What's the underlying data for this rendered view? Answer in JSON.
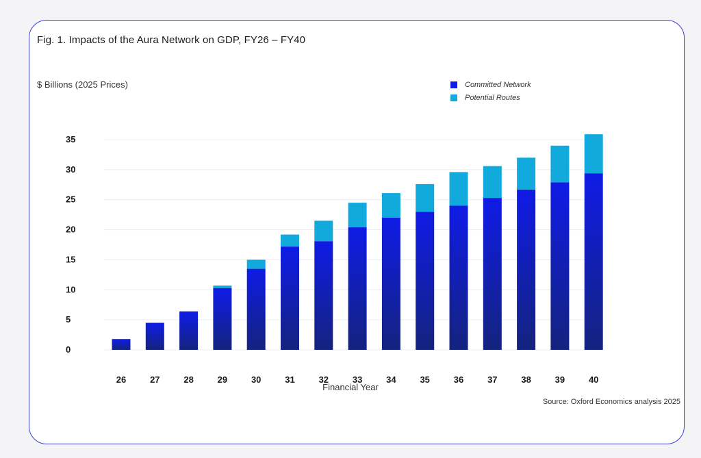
{
  "chart_data": {
    "type": "bar",
    "stacked": true,
    "title": "Fig. 1. Impacts of the Aura Network on GDP, FY26 – FY40",
    "ylabel": "$ Billions (2025 Prices)",
    "xlabel": "Financial Year",
    "source": "Source: Oxford Economics analysis 2025",
    "categories": [
      "26",
      "27",
      "28",
      "29",
      "30",
      "31",
      "32",
      "33",
      "34",
      "35",
      "36",
      "37",
      "38",
      "39",
      "40"
    ],
    "yticks": [
      "0",
      "5",
      "10",
      "15",
      "20",
      "25",
      "30",
      "35"
    ],
    "ylim": [
      0,
      35
    ],
    "grid": true,
    "legend_position": "top-right",
    "series": [
      {
        "name": "Committed Network",
        "color": "#0f1be6",
        "values": [
          1.8,
          4.5,
          6.4,
          10.3,
          13.5,
          17.2,
          18.1,
          20.4,
          22.0,
          23.0,
          24.0,
          25.3,
          26.7,
          27.9,
          29.4
        ]
      },
      {
        "name": "Potential Routes",
        "color": "#12a9dc",
        "values": [
          0,
          0,
          0,
          0.4,
          1.5,
          2.0,
          3.4,
          4.1,
          4.1,
          4.6,
          5.6,
          5.3,
          5.3,
          6.1,
          6.5
        ]
      }
    ]
  }
}
